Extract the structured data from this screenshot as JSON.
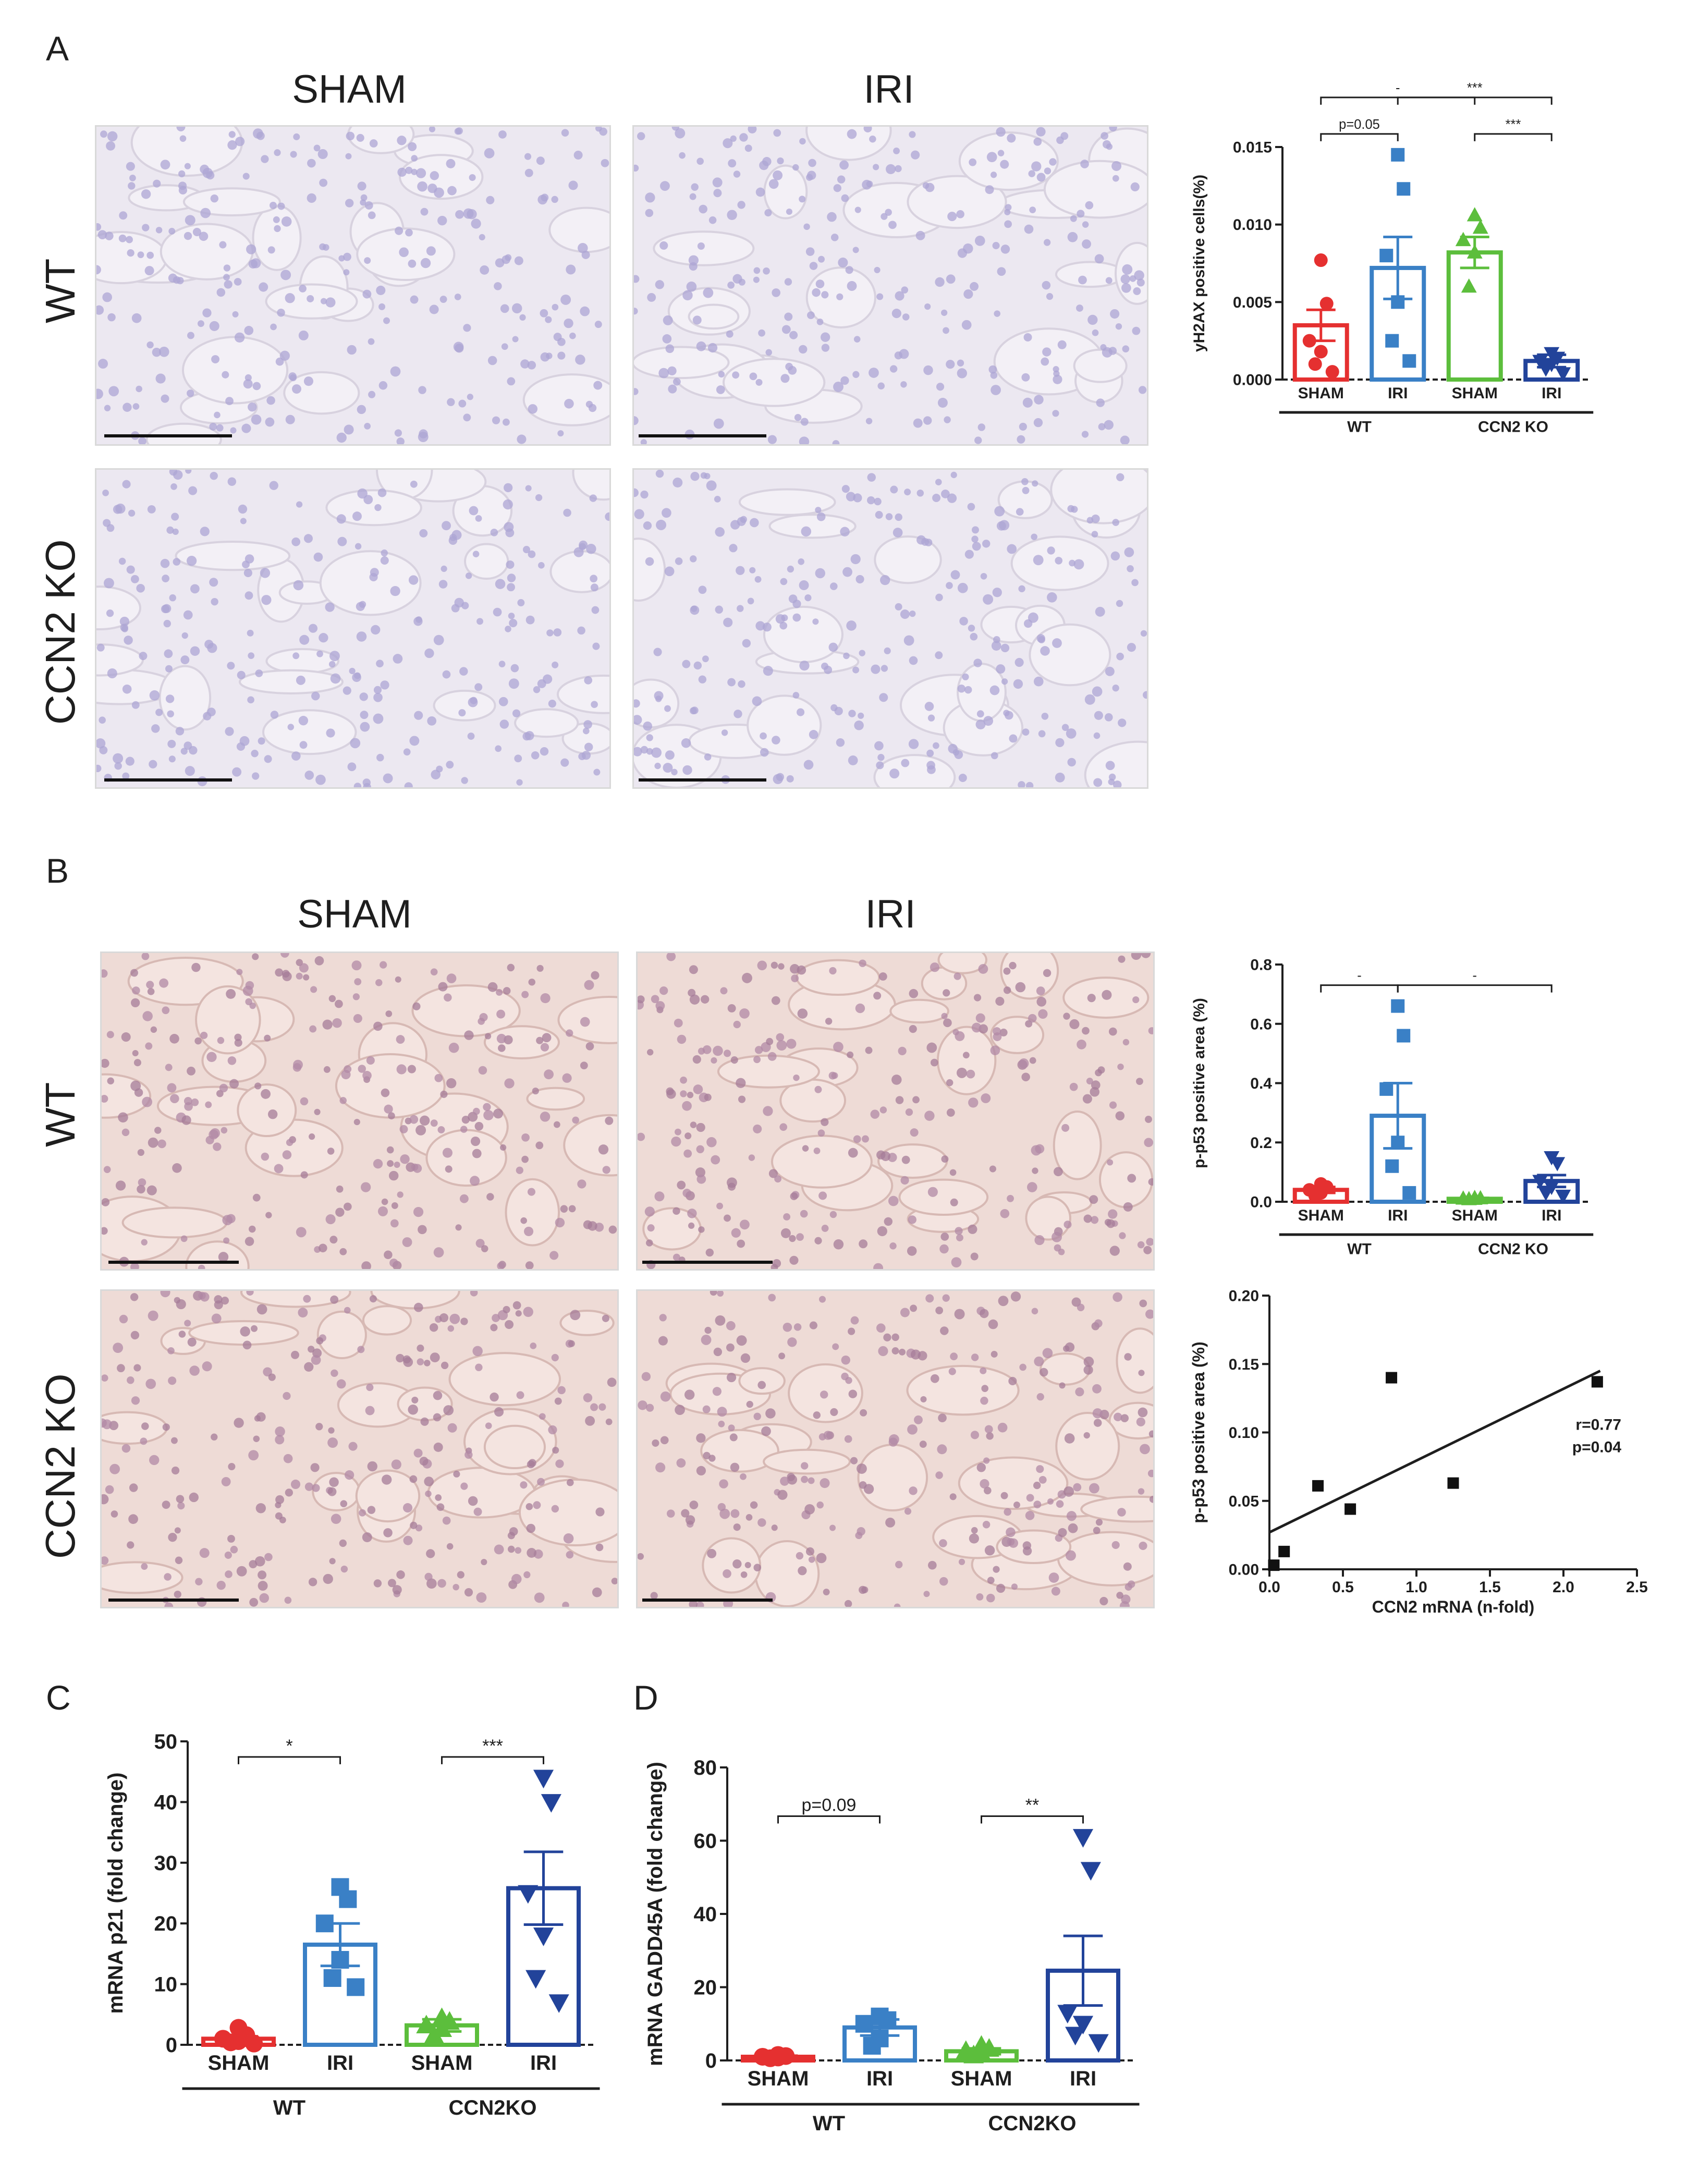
{
  "panels": {
    "A": {
      "label": "A",
      "col_headers": [
        "SHAM",
        "IRI"
      ],
      "row_headers": [
        "WT",
        "CCN2 KO"
      ]
    },
    "B": {
      "label": "B",
      "col_headers": [
        "SHAM",
        "IRI"
      ],
      "row_headers": [
        "WT",
        "CCN2 KO"
      ]
    },
    "C": {
      "label": "C"
    },
    "D": {
      "label": "D"
    }
  },
  "colors": {
    "wt_sham": "#e53030",
    "wt_iri": "#3a80c6",
    "ko_sham": "#5cbe3c",
    "ko_iri": "#22439a",
    "micro_he": "#ece8f1",
    "micro_dab": "#eedbd6"
  },
  "chart_data": [
    {
      "id": "A-yH2AX",
      "type": "bar",
      "ylabel": "yH2AX positive cells(%)",
      "ylim": [
        0,
        0.015
      ],
      "yticks": [
        "0.000",
        "0.005",
        "0.010",
        "0.015"
      ],
      "categories": [
        "SHAM",
        "IRI",
        "SHAM",
        "IRI"
      ],
      "groups": [
        "WT",
        "CCN2 KO"
      ],
      "values": [
        0.0035,
        0.0072,
        0.0082,
        0.0012
      ],
      "errors": [
        0.001,
        0.002,
        0.001,
        0.0004
      ],
      "points": [
        [
          0.0077,
          0.0049,
          0.0025,
          0.0018,
          0.001,
          0.0005
        ],
        [
          0.0145,
          0.0123,
          0.008,
          0.005,
          0.0025,
          0.0012
        ],
        [
          0.0106,
          0.0098,
          0.009,
          0.0082,
          0.006
        ],
        [
          0.0017,
          0.0014,
          0.0012,
          0.001,
          0.0007,
          0.0004
        ]
      ],
      "markers": [
        "circle",
        "square",
        "triangle-up",
        "triangle-down"
      ],
      "annotations": [
        {
          "text": "-",
          "from": 0,
          "to": 2
        },
        {
          "text": "***",
          "from": 2,
          "to": 3
        },
        {
          "text": "p=0.05",
          "from": 0,
          "to": 1
        },
        {
          "text": "***",
          "from": 1,
          "to": 3
        }
      ]
    },
    {
      "id": "B-pp53",
      "type": "bar",
      "ylabel": "p-p53 positive area (%)",
      "ylim": [
        0,
        0.8
      ],
      "yticks": [
        "0.0",
        "0.2",
        "0.4",
        "0.6",
        "0.8"
      ],
      "categories": [
        "SHAM",
        "IRI",
        "SHAM",
        "IRI"
      ],
      "groups": [
        "WT",
        "CCN2  KO"
      ],
      "values": [
        0.04,
        0.29,
        0.01,
        0.07
      ],
      "errors": [
        0.01,
        0.11,
        0.003,
        0.02
      ],
      "points": [
        [
          0.06,
          0.05,
          0.04,
          0.03,
          0.02
        ],
        [
          0.66,
          0.56,
          0.38,
          0.2,
          0.12,
          0.03
        ],
        [
          0.013,
          0.012,
          0.011,
          0.01,
          0.009
        ],
        [
          0.15,
          0.13,
          0.07,
          0.05,
          0.03,
          0.02
        ]
      ],
      "markers": [
        "circle",
        "square",
        "triangle-up",
        "triangle-down"
      ],
      "annotations": [
        {
          "text": "-",
          "from": 0,
          "to": 1
        },
        {
          "text": "-",
          "from": 1,
          "to": 3
        }
      ]
    },
    {
      "id": "B-scatter",
      "type": "scatter",
      "xlabel": "CCN2 mRNA (n-fold)",
      "ylabel": "p-p53 positive area (%)",
      "xlim": [
        0,
        2.5
      ],
      "ylim": [
        0,
        0.2
      ],
      "xticks": [
        "0.0",
        "0.5",
        "1.0",
        "1.5",
        "2.0",
        "2.5"
      ],
      "yticks": [
        "0.00",
        "0.05",
        "0.10",
        "0.15",
        "0.20"
      ],
      "x": [
        0.03,
        0.1,
        0.33,
        0.55,
        0.83,
        1.25,
        2.23
      ],
      "y": [
        0.003,
        0.013,
        0.061,
        0.044,
        0.14,
        0.063,
        0.137
      ],
      "fit": {
        "x": [
          0.0,
          2.25
        ],
        "y": [
          0.027,
          0.145
        ]
      },
      "stats": [
        "r=0.77",
        "p=0.04"
      ]
    },
    {
      "id": "C-p21",
      "type": "bar",
      "ylabel": "mRNA p21 (fold change)",
      "ylim": [
        0,
        50
      ],
      "yticks": [
        "0",
        "10",
        "20",
        "30",
        "40",
        "50"
      ],
      "categories": [
        "SHAM",
        "IRI",
        "SHAM",
        "IRI"
      ],
      "groups": [
        "WT",
        "CCN2KO"
      ],
      "values": [
        1.0,
        16.5,
        3.2,
        25.8
      ],
      "errors": [
        0.4,
        3.5,
        1.0,
        6.0
      ],
      "points": [
        [
          2.8,
          1.6,
          1.0,
          0.6,
          0.4,
          0.2
        ],
        [
          26.0,
          24.0,
          20.0,
          14.0,
          11.0,
          9.5
        ],
        [
          4.4,
          3.8,
          3.2,
          2.6,
          1.5
        ],
        [
          44.0,
          40.0,
          25.0,
          18.0,
          11.0,
          7.0
        ]
      ],
      "markers": [
        "circle",
        "square",
        "triangle-up",
        "triangle-down"
      ],
      "annotations": [
        {
          "text": "*",
          "from": 0,
          "to": 1
        },
        {
          "text": "***",
          "from": 2,
          "to": 3
        }
      ]
    },
    {
      "id": "D-GADD45A",
      "type": "bar",
      "ylabel": "mRNA GADD45A (fold change)",
      "ylim": [
        0,
        80
      ],
      "yticks": [
        "0",
        "20",
        "40",
        "60",
        "80"
      ],
      "categories": [
        "SHAM",
        "IRI",
        "SHAM",
        "IRI"
      ],
      "groups": [
        "WT",
        "CCN2KO"
      ],
      "values": [
        1.0,
        9.0,
        2.5,
        24.5
      ],
      "errors": [
        0.3,
        2.2,
        0.8,
        9.5
      ],
      "points": [
        [
          1.5,
          1.2,
          1.0,
          0.8,
          0.6
        ],
        [
          12.0,
          11.0,
          10.0,
          6.0,
          4.0
        ],
        [
          4.0,
          3.2,
          2.6,
          2.0,
          1.4
        ],
        [
          61.0,
          52.0,
          13.0,
          10.0,
          7.0,
          5.0
        ]
      ],
      "markers": [
        "circle",
        "square",
        "triangle-up",
        "triangle-down"
      ],
      "annotations": [
        {
          "text": "p=0.09",
          "from": 0,
          "to": 1
        },
        {
          "text": "**",
          "from": 2,
          "to": 3
        }
      ]
    }
  ]
}
